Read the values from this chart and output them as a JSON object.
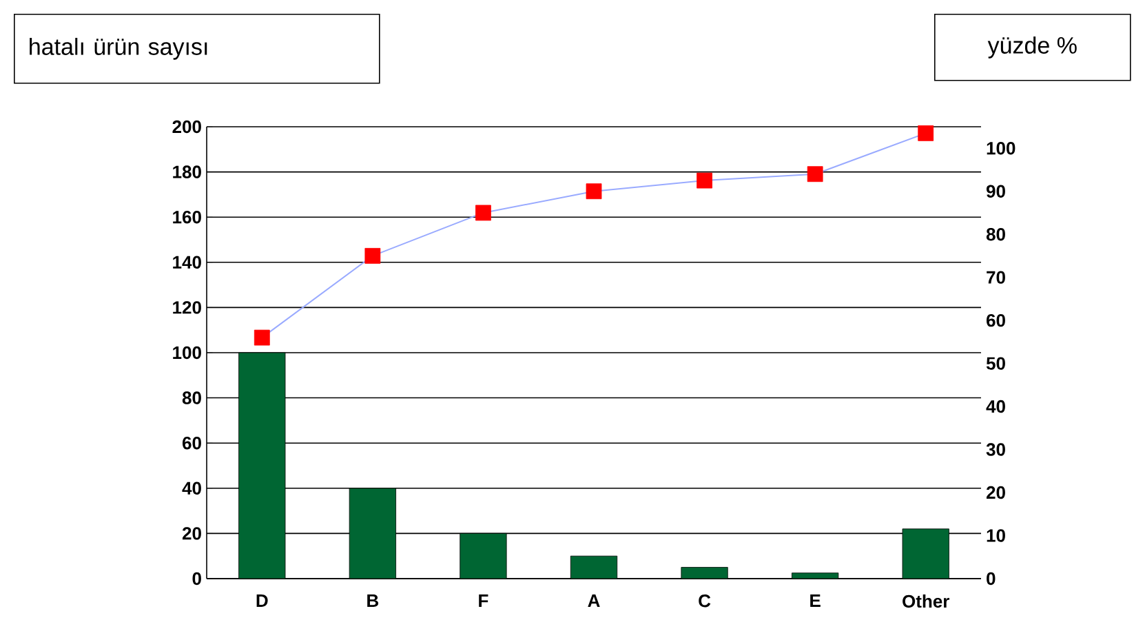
{
  "chart_data": {
    "type": "bar",
    "ylabel": "hatalı ürün sayısı",
    "y2label": "yüzde %",
    "categories": [
      "D",
      "B",
      "F",
      "A",
      "C",
      "E",
      "Other"
    ],
    "series": [
      {
        "color": "#006633",
        "values": [
          100,
          40,
          20,
          10,
          5,
          2.5,
          22
        ]
      },
      {
        "type": "line",
        "axis": "y2",
        "color": "#99aaff",
        "marker": "square",
        "colors": [
          "#ff0000",
          "#ff0000",
          "#ff0000",
          "#ff0000",
          "#ff0000",
          "#ff0000",
          "#ff0000"
        ],
        "values": [
          56,
          75,
          85,
          90,
          92.5,
          94,
          103.5
        ]
      }
    ],
    "ylim": [
      0,
      200
    ],
    "yticks": [
      0,
      20,
      40,
      60,
      80,
      100,
      120,
      140,
      160,
      180,
      200
    ],
    "y2lim": [
      0,
      105
    ],
    "y2ticks": [
      0,
      10,
      20,
      30,
      40,
      50,
      60,
      70,
      80,
      90,
      100
    ],
    "grid": "y"
  }
}
